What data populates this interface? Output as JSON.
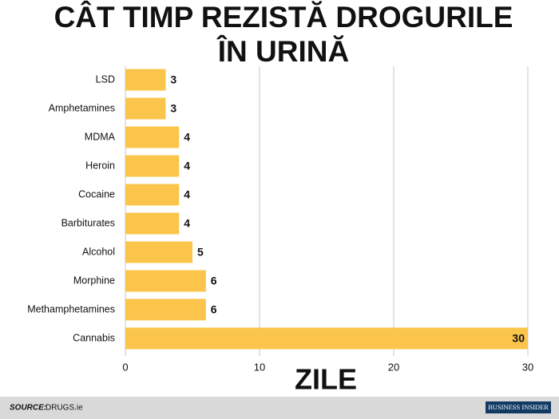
{
  "chart_data": {
    "type": "bar",
    "orientation": "horizontal",
    "title": [
      "CÂT TIMP REZISTĂ DROGURILE",
      "ÎN URINĂ"
    ],
    "categories": [
      "LSD",
      "Amphetamines",
      "MDMA",
      "Heroin",
      "Cocaine",
      "Barbiturates",
      "Alcohol",
      "Morphine",
      "Methamphetamines",
      "Cannabis"
    ],
    "values": [
      3,
      3,
      4,
      4,
      4,
      4,
      5,
      6,
      6,
      30
    ],
    "color": "#fbc54b",
    "xlim": [
      0,
      30
    ],
    "xticks": [
      0,
      10,
      20,
      30
    ],
    "grid": true,
    "xlabel": "ZILE",
    "source_label": "SOURCE:",
    "source": "DRUGS.ie",
    "brand": "BUSINESS INSIDER"
  }
}
